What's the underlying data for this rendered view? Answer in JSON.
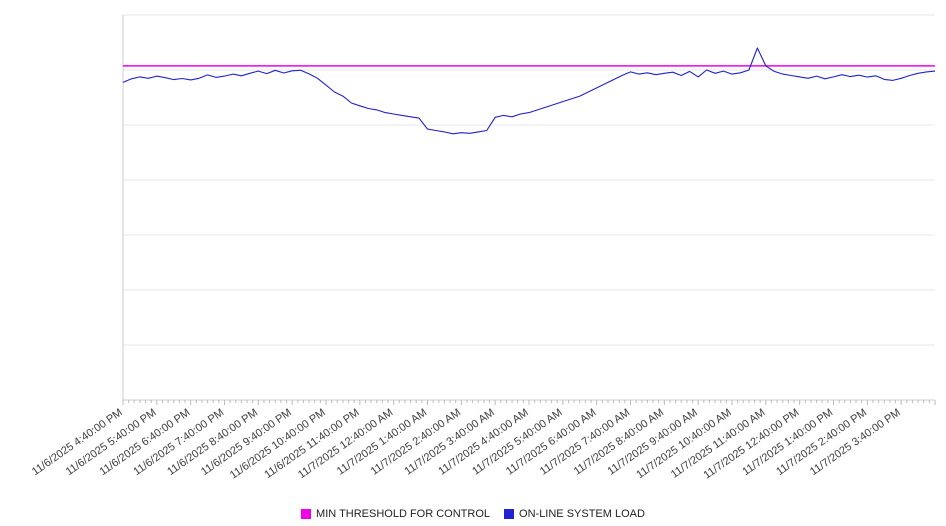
{
  "chart_data": {
    "type": "line",
    "title": "",
    "xlabel": "",
    "ylabel": "",
    "ylim": [
      0,
      140
    ],
    "y_gridline_step": 20,
    "grid": true,
    "legend_position": "bottom",
    "x_hours_span": 24,
    "x_labels": [
      "11/6/2025 4:40:00 PM",
      "11/6/2025 5:40:00 PM",
      "11/6/2025 6:40:00 PM",
      "11/6/2025 7:40:00 PM",
      "11/6/2025 8:40:00 PM",
      "11/6/2025 9:40:00 PM",
      "11/6/2025 10:40:00 PM",
      "11/6/2025 11:40:00 PM",
      "11/7/2025 12:40:00 AM",
      "11/7/2025 1:40:00 AM",
      "11/7/2025 2:40:00 AM",
      "11/7/2025 3:40:00 AM",
      "11/7/2025 4:40:00 AM",
      "11/7/2025 5:40:00 AM",
      "11/7/2025 6:40:00 AM",
      "11/7/2025 7:40:00 AM",
      "11/7/2025 8:40:00 AM",
      "11/7/2025 9:40:00 AM",
      "11/7/2025 10:40:00 AM",
      "11/7/2025 11:40:00 AM",
      "11/7/2025 12:40:00 PM",
      "11/7/2025 1:40:00 PM",
      "11/7/2025 2:40:00 PM",
      "11/7/2025 3:40:00 PM"
    ],
    "series": [
      {
        "name": "MIN THRESHOLD FOR CONTROL",
        "kind": "threshold",
        "color": "#ee00ee",
        "value": 121.5
      },
      {
        "name": "ON-LINE SYSTEM LOAD",
        "kind": "line",
        "color": "#2222cc",
        "values": [
          115.5,
          116.8,
          117.5,
          117.0,
          117.8,
          117.2,
          116.5,
          116.9,
          116.4,
          117.0,
          118.2,
          117.3,
          117.8,
          118.5,
          117.9,
          118.8,
          119.6,
          118.7,
          119.9,
          118.9,
          119.7,
          119.9,
          118.6,
          117.0,
          114.5,
          112.0,
          110.5,
          108.0,
          107.0,
          106.0,
          105.5,
          104.5,
          104.0,
          103.5,
          103.0,
          102.5,
          98.5,
          98.0,
          97.5,
          96.8,
          97.2,
          97.0,
          97.5,
          98.0,
          102.8,
          103.5,
          103.0,
          104.0,
          104.5,
          105.5,
          106.5,
          107.5,
          108.5,
          109.5,
          110.5,
          112.0,
          113.5,
          115.0,
          116.5,
          118.0,
          119.3,
          118.5,
          119.0,
          118.3,
          118.8,
          119.2,
          118.0,
          119.5,
          117.5,
          120.0,
          118.8,
          119.6,
          118.5,
          119.0,
          120.0,
          128.0,
          121.5,
          119.5,
          118.5,
          118.0,
          117.5,
          117.0,
          117.8,
          116.8,
          117.5,
          118.3,
          117.6,
          118.1,
          117.4,
          117.9,
          116.6,
          116.2,
          117.0,
          118.0,
          118.8,
          119.3,
          119.6
        ]
      }
    ]
  }
}
